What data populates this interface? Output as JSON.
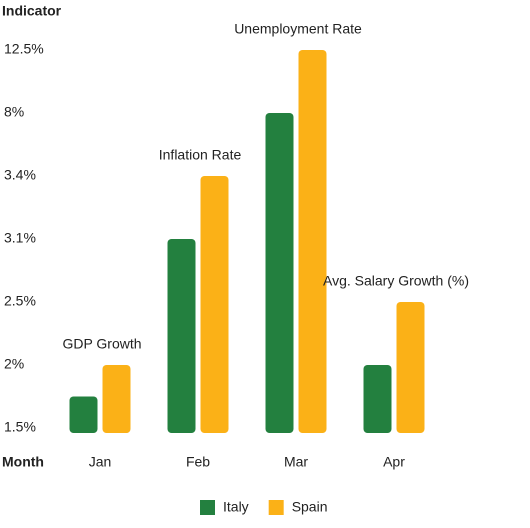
{
  "chart_data": {
    "type": "bar",
    "y_axis_title": "Indicator",
    "x_axis_title": "Month",
    "categories": [
      "Jan",
      "Feb",
      "Mar",
      "Apr"
    ],
    "category_annotations": [
      "GDP Growth",
      "Inflation Rate",
      "Unemployment Rate",
      "Avg. Salary Growth (%)"
    ],
    "series": [
      {
        "name": "Italy",
        "color": "#23803f",
        "values": [
          1.75,
          3.1,
          8,
          2
        ]
      },
      {
        "name": "Spain",
        "color": "#fbb117",
        "values": [
          2,
          3.4,
          12.5,
          2.5
        ]
      }
    ],
    "ylim": [
      1.5,
      12.5
    ],
    "yticks": [
      {
        "value": 1.5,
        "label": "1.5%"
      },
      {
        "value": 2,
        "label": "2%"
      },
      {
        "value": 2.5,
        "label": "2.5%"
      },
      {
        "value": 3.1,
        "label": "3.1%"
      },
      {
        "value": 3.4,
        "label": "3.4%"
      },
      {
        "value": 8,
        "label": "8%"
      },
      {
        "value": 12.5,
        "label": "12.5%"
      }
    ],
    "legend": "bottom"
  }
}
